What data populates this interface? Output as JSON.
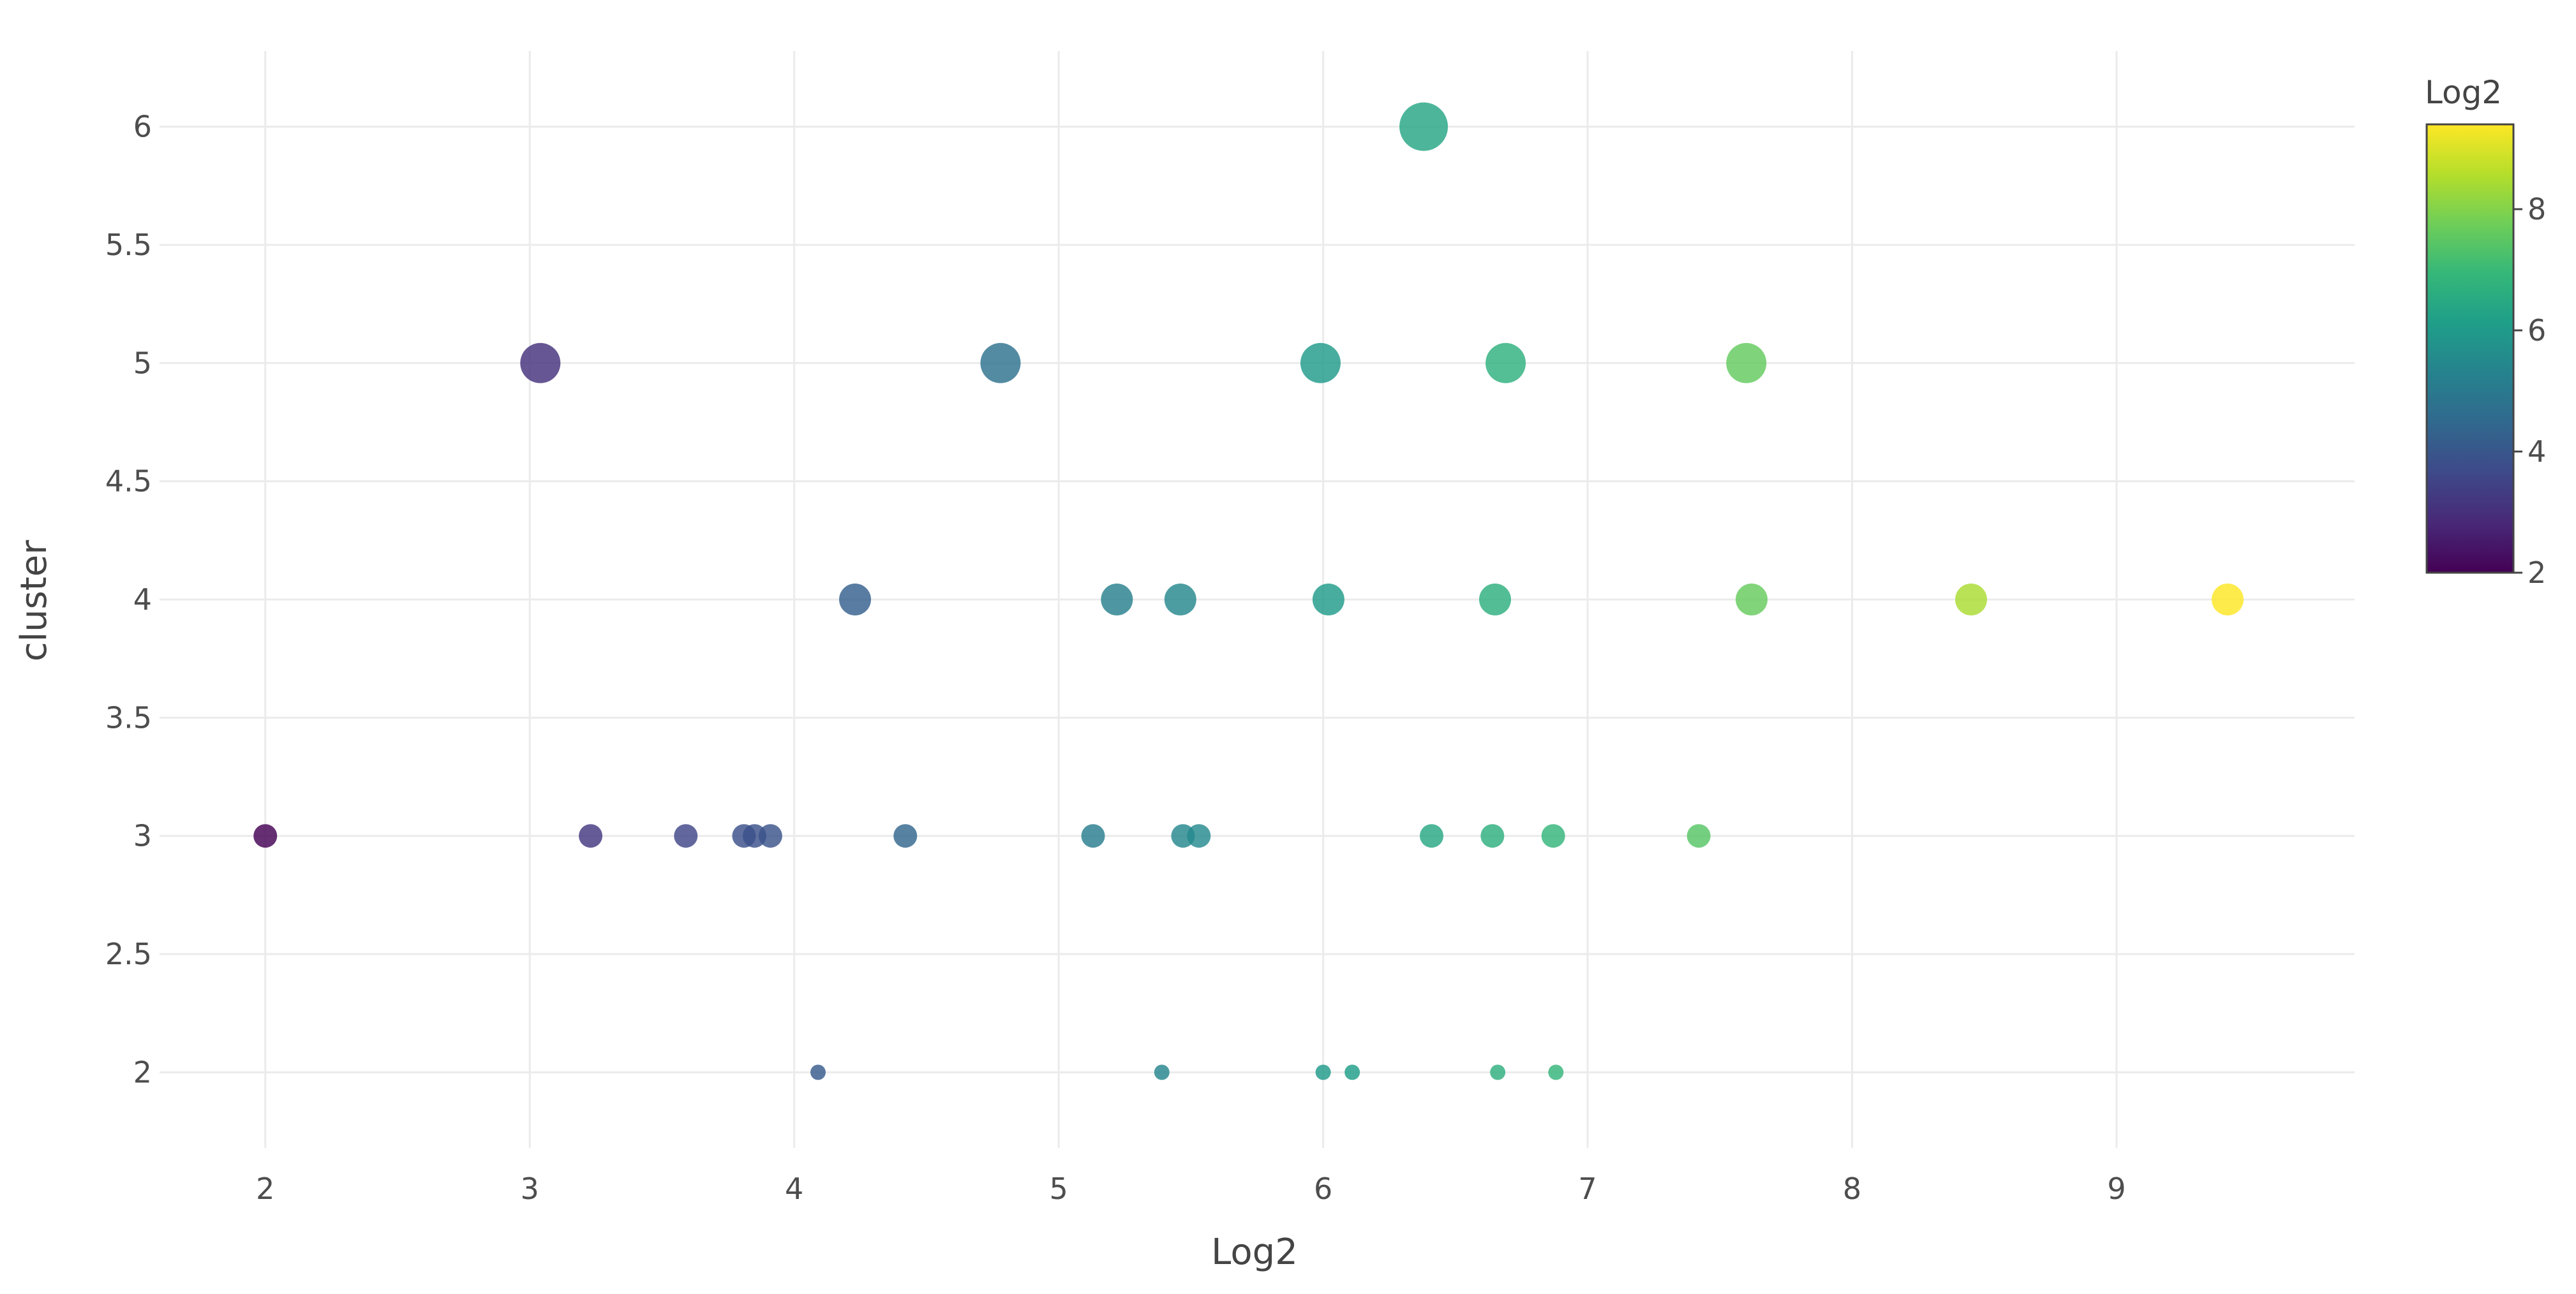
{
  "chart_data": {
    "type": "scatter",
    "title": "",
    "xlabel": "Log2",
    "ylabel": "cluster",
    "xlim": [
      1.6,
      9.9
    ],
    "ylim": [
      1.68,
      6.32
    ],
    "xticks": [
      2,
      3,
      4,
      5,
      6,
      7,
      8,
      9
    ],
    "yticks": [
      2,
      2.5,
      3,
      3.5,
      4,
      4.5,
      5,
      5.5,
      6
    ],
    "grid": true,
    "legend": {
      "title": "Log2",
      "type": "colorbar",
      "placement": "right",
      "range": [
        2,
        9.4
      ],
      "ticks": [
        2,
        4,
        6,
        8
      ],
      "colorscale": "viridis"
    },
    "marker_size_encodes": "cluster",
    "points": [
      {
        "x": 6.38,
        "y": 6
      },
      {
        "x": 3.04,
        "y": 5
      },
      {
        "x": 4.78,
        "y": 5
      },
      {
        "x": 5.99,
        "y": 5
      },
      {
        "x": 6.69,
        "y": 5
      },
      {
        "x": 7.6,
        "y": 5
      },
      {
        "x": 4.23,
        "y": 4
      },
      {
        "x": 5.22,
        "y": 4
      },
      {
        "x": 5.46,
        "y": 4
      },
      {
        "x": 6.02,
        "y": 4
      },
      {
        "x": 6.65,
        "y": 4
      },
      {
        "x": 7.62,
        "y": 4
      },
      {
        "x": 8.45,
        "y": 4
      },
      {
        "x": 9.42,
        "y": 4
      },
      {
        "x": 2.0,
        "y": 3
      },
      {
        "x": 3.23,
        "y": 3
      },
      {
        "x": 3.59,
        "y": 3
      },
      {
        "x": 3.81,
        "y": 3
      },
      {
        "x": 3.85,
        "y": 3
      },
      {
        "x": 3.91,
        "y": 3
      },
      {
        "x": 4.42,
        "y": 3
      },
      {
        "x": 5.13,
        "y": 3
      },
      {
        "x": 5.47,
        "y": 3
      },
      {
        "x": 5.53,
        "y": 3
      },
      {
        "x": 6.41,
        "y": 3
      },
      {
        "x": 6.64,
        "y": 3
      },
      {
        "x": 6.87,
        "y": 3
      },
      {
        "x": 7.42,
        "y": 3
      },
      {
        "x": 4.09,
        "y": 2
      },
      {
        "x": 5.39,
        "y": 2
      },
      {
        "x": 6.0,
        "y": 2
      },
      {
        "x": 6.11,
        "y": 2
      },
      {
        "x": 6.66,
        "y": 2
      },
      {
        "x": 6.88,
        "y": 2
      }
    ]
  }
}
